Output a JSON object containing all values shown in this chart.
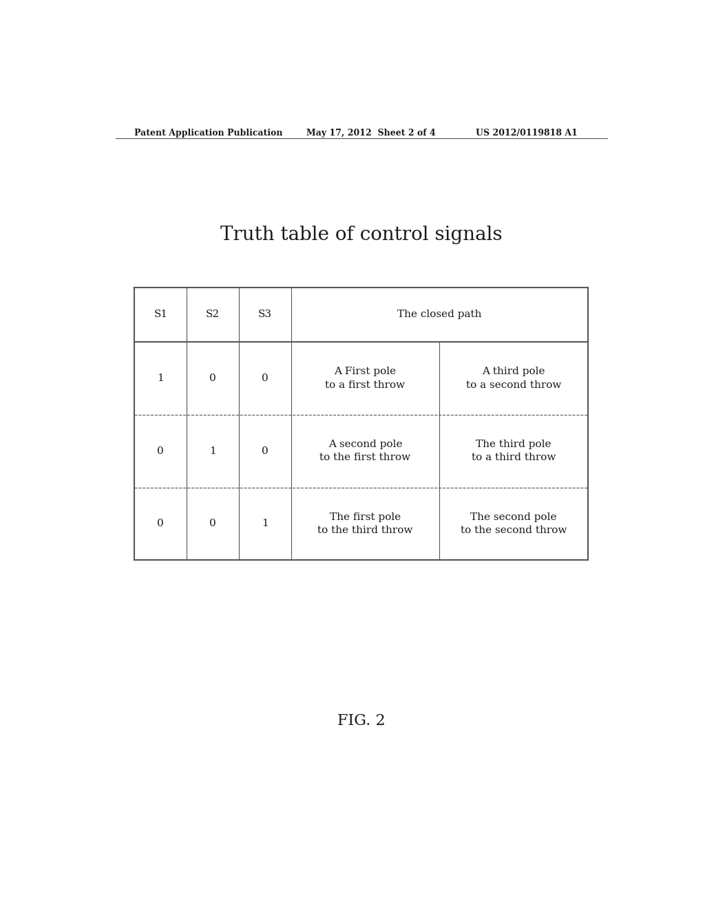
{
  "title": "Truth table of control signals",
  "data_rows": [
    {
      "s1": "1",
      "s2": "0",
      "s3": "0",
      "col4": "A First pole\nto a first throw",
      "col5": "A third pole\nto a second throw"
    },
    {
      "s1": "0",
      "s2": "1",
      "s3": "0",
      "col4": "A second pole\nto the first throw",
      "col5": "The third pole\nto a third throw"
    },
    {
      "s1": "0",
      "s2": "0",
      "s3": "1",
      "col4": "The first pole\nto the third throw",
      "col5": "The second pole\nto the second throw"
    }
  ],
  "header_text": "Patent Application Publication",
  "header_date": "May 17, 2012  Sheet 2 of 4",
  "header_patent": "US 2012/0119818 A1",
  "fig_label": "FIG. 2",
  "bg_color": "#ffffff",
  "text_color": "#1a1a1a",
  "border_color": "#555555",
  "title_fontsize": 20,
  "header_fontsize": 9,
  "cell_fontsize": 11,
  "fig_label_fontsize": 16
}
